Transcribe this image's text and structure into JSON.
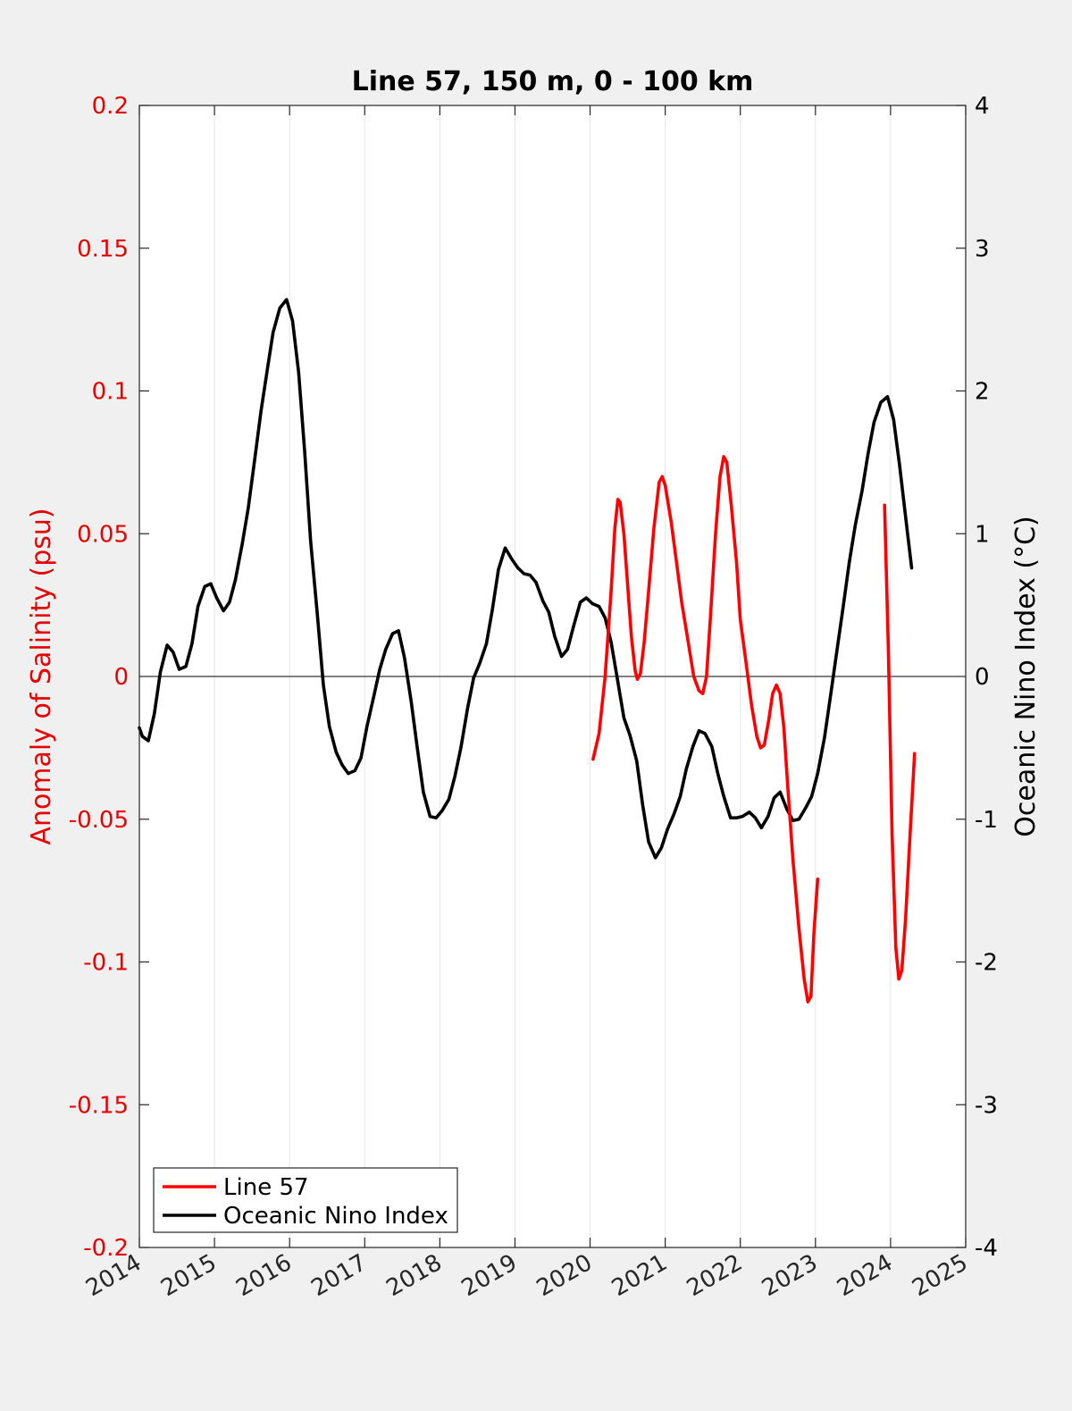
{
  "chart_data": {
    "type": "line",
    "title": "Line 57, 150 m, 0 - 100 km",
    "xlabel": "",
    "ylabel_left": "Anomaly of Salinity (psu)",
    "ylabel_right": "Oceanic Nino Index (°C)",
    "xlim": [
      2014,
      2025
    ],
    "ylim_left": [
      -0.2,
      0.2
    ],
    "ylim_right": [
      -4,
      4
    ],
    "x_ticks": [
      "2014",
      "2015",
      "2016",
      "2017",
      "2018",
      "2019",
      "2020",
      "2021",
      "2022",
      "2023",
      "2024",
      "2025"
    ],
    "y_left_ticks": [
      "-0.2",
      "-0.15",
      "-0.1",
      "-0.05",
      "0",
      "0.05",
      "0.1",
      "0.15",
      "0.2"
    ],
    "y_right_ticks": [
      "-4",
      "-3",
      "-2",
      "-1",
      "0",
      "1",
      "2",
      "3",
      "4"
    ],
    "grid": "vertical",
    "zero_line": true,
    "legend_position": "bottom-left",
    "left_axis_color": "#e60000",
    "right_axis_color": "#000000",
    "series": [
      {
        "name": "Line 57",
        "axis": "left",
        "color": "#ff0000",
        "segments": [
          [
            [
              2020.04,
              -0.029
            ],
            [
              2020.12,
              -0.02
            ],
            [
              2020.2,
              0.0
            ],
            [
              2020.28,
              0.03
            ],
            [
              2020.33,
              0.052
            ],
            [
              2020.37,
              0.062
            ],
            [
              2020.4,
              0.061
            ],
            [
              2020.45,
              0.05
            ],
            [
              2020.5,
              0.032
            ],
            [
              2020.55,
              0.014
            ],
            [
              2020.6,
              0.002
            ],
            [
              2020.63,
              -0.001
            ],
            [
              2020.67,
              0.001
            ],
            [
              2020.72,
              0.012
            ],
            [
              2020.78,
              0.03
            ],
            [
              2020.85,
              0.052
            ],
            [
              2020.92,
              0.068
            ],
            [
              2020.96,
              0.07
            ],
            [
              2021.0,
              0.067
            ],
            [
              2021.08,
              0.054
            ],
            [
              2021.15,
              0.04
            ],
            [
              2021.22,
              0.026
            ],
            [
              2021.3,
              0.013
            ],
            [
              2021.38,
              0.0
            ],
            [
              2021.45,
              -0.005
            ],
            [
              2021.5,
              -0.006
            ],
            [
              2021.55,
              0.0
            ],
            [
              2021.6,
              0.02
            ],
            [
              2021.67,
              0.05
            ],
            [
              2021.73,
              0.07
            ],
            [
              2021.78,
              0.077
            ],
            [
              2021.82,
              0.075
            ],
            [
              2021.88,
              0.06
            ],
            [
              2021.95,
              0.04
            ],
            [
              2022.0,
              0.02
            ],
            [
              2022.08,
              0.004
            ],
            [
              2022.15,
              -0.01
            ],
            [
              2022.22,
              -0.021
            ],
            [
              2022.27,
              -0.025
            ],
            [
              2022.32,
              -0.024
            ],
            [
              2022.38,
              -0.015
            ],
            [
              2022.43,
              -0.006
            ],
            [
              2022.48,
              -0.003
            ],
            [
              2022.53,
              -0.006
            ],
            [
              2022.58,
              -0.018
            ],
            [
              2022.63,
              -0.038
            ],
            [
              2022.7,
              -0.064
            ],
            [
              2022.78,
              -0.088
            ],
            [
              2022.85,
              -0.106
            ],
            [
              2022.9,
              -0.114
            ],
            [
              2022.94,
              -0.112
            ],
            [
              2022.98,
              -0.09
            ],
            [
              2023.03,
              -0.071
            ]
          ],
          [
            [
              2023.92,
              0.06
            ],
            [
              2023.97,
              0.01
            ],
            [
              2024.02,
              -0.055
            ],
            [
              2024.07,
              -0.095
            ],
            [
              2024.11,
              -0.106
            ],
            [
              2024.15,
              -0.103
            ],
            [
              2024.2,
              -0.085
            ],
            [
              2024.26,
              -0.055
            ],
            [
              2024.32,
              -0.027
            ]
          ]
        ]
      },
      {
        "name": "Oceanic Nino Index",
        "axis": "right",
        "color": "#000000",
        "segments": [
          [
            [
              2014.0,
              -0.36
            ],
            [
              2014.04,
              -0.42
            ],
            [
              2014.12,
              -0.45
            ],
            [
              2014.2,
              -0.26
            ],
            [
              2014.28,
              0.03
            ],
            [
              2014.37,
              0.22
            ],
            [
              2014.45,
              0.17
            ],
            [
              2014.53,
              0.05
            ],
            [
              2014.62,
              0.07
            ],
            [
              2014.7,
              0.23
            ],
            [
              2014.78,
              0.49
            ],
            [
              2014.87,
              0.63
            ],
            [
              2014.95,
              0.65
            ],
            [
              2015.03,
              0.55
            ],
            [
              2015.12,
              0.46
            ],
            [
              2015.2,
              0.52
            ],
            [
              2015.28,
              0.68
            ],
            [
              2015.37,
              0.93
            ],
            [
              2015.45,
              1.18
            ],
            [
              2015.53,
              1.5
            ],
            [
              2015.62,
              1.86
            ],
            [
              2015.7,
              2.14
            ],
            [
              2015.78,
              2.41
            ],
            [
              2015.87,
              2.58
            ],
            [
              2015.96,
              2.64
            ],
            [
              2016.04,
              2.49
            ],
            [
              2016.12,
              2.13
            ],
            [
              2016.2,
              1.58
            ],
            [
              2016.28,
              0.95
            ],
            [
              2016.37,
              0.43
            ],
            [
              2016.45,
              -0.06
            ],
            [
              2016.53,
              -0.35
            ],
            [
              2016.62,
              -0.53
            ],
            [
              2016.7,
              -0.62
            ],
            [
              2016.78,
              -0.68
            ],
            [
              2016.87,
              -0.66
            ],
            [
              2016.95,
              -0.57
            ],
            [
              2017.03,
              -0.35
            ],
            [
              2017.12,
              -0.14
            ],
            [
              2017.2,
              0.05
            ],
            [
              2017.28,
              0.19
            ],
            [
              2017.37,
              0.3
            ],
            [
              2017.45,
              0.32
            ],
            [
              2017.53,
              0.13
            ],
            [
              2017.62,
              -0.18
            ],
            [
              2017.7,
              -0.5
            ],
            [
              2017.78,
              -0.81
            ],
            [
              2017.87,
              -0.98
            ],
            [
              2017.95,
              -0.99
            ],
            [
              2018.03,
              -0.94
            ],
            [
              2018.12,
              -0.86
            ],
            [
              2018.2,
              -0.7
            ],
            [
              2018.28,
              -0.5
            ],
            [
              2018.37,
              -0.22
            ],
            [
              2018.45,
              -0.01
            ],
            [
              2018.53,
              0.09
            ],
            [
              2018.62,
              0.23
            ],
            [
              2018.7,
              0.47
            ],
            [
              2018.78,
              0.75
            ],
            [
              2018.87,
              0.9
            ],
            [
              2018.96,
              0.82
            ],
            [
              2019.04,
              0.76
            ],
            [
              2019.12,
              0.72
            ],
            [
              2019.2,
              0.71
            ],
            [
              2019.28,
              0.66
            ],
            [
              2019.37,
              0.53
            ],
            [
              2019.45,
              0.45
            ],
            [
              2019.53,
              0.28
            ],
            [
              2019.62,
              0.14
            ],
            [
              2019.7,
              0.19
            ],
            [
              2019.78,
              0.35
            ],
            [
              2019.87,
              0.52
            ],
            [
              2019.95,
              0.55
            ],
            [
              2020.03,
              0.51
            ],
            [
              2020.12,
              0.49
            ],
            [
              2020.2,
              0.41
            ],
            [
              2020.28,
              0.24
            ],
            [
              2020.37,
              -0.04
            ],
            [
              2020.45,
              -0.29
            ],
            [
              2020.53,
              -0.41
            ],
            [
              2020.62,
              -0.59
            ],
            [
              2020.7,
              -0.9
            ],
            [
              2020.78,
              -1.16
            ],
            [
              2020.87,
              -1.27
            ],
            [
              2020.95,
              -1.2
            ],
            [
              2021.03,
              -1.07
            ],
            [
              2021.12,
              -0.96
            ],
            [
              2021.2,
              -0.84
            ],
            [
              2021.28,
              -0.65
            ],
            [
              2021.37,
              -0.49
            ],
            [
              2021.45,
              -0.38
            ],
            [
              2021.53,
              -0.4
            ],
            [
              2021.62,
              -0.49
            ],
            [
              2021.7,
              -0.68
            ],
            [
              2021.78,
              -0.84
            ],
            [
              2021.87,
              -0.99
            ],
            [
              2021.95,
              -0.99
            ],
            [
              2022.03,
              -0.98
            ],
            [
              2022.12,
              -0.95
            ],
            [
              2022.2,
              -0.99
            ],
            [
              2022.28,
              -1.06
            ],
            [
              2022.37,
              -0.98
            ],
            [
              2022.45,
              -0.85
            ],
            [
              2022.53,
              -0.81
            ],
            [
              2022.62,
              -0.93
            ],
            [
              2022.7,
              -1.01
            ],
            [
              2022.78,
              -1.0
            ],
            [
              2022.87,
              -0.92
            ],
            [
              2022.95,
              -0.84
            ],
            [
              2023.03,
              -0.68
            ],
            [
              2023.12,
              -0.43
            ],
            [
              2023.2,
              -0.14
            ],
            [
              2023.28,
              0.16
            ],
            [
              2023.37,
              0.49
            ],
            [
              2023.45,
              0.8
            ],
            [
              2023.53,
              1.06
            ],
            [
              2023.62,
              1.3
            ],
            [
              2023.7,
              1.56
            ],
            [
              2023.78,
              1.78
            ],
            [
              2023.87,
              1.92
            ],
            [
              2023.96,
              1.96
            ],
            [
              2024.04,
              1.8
            ],
            [
              2024.12,
              1.48
            ],
            [
              2024.2,
              1.12
            ],
            [
              2024.28,
              0.76
            ]
          ]
        ]
      }
    ]
  }
}
